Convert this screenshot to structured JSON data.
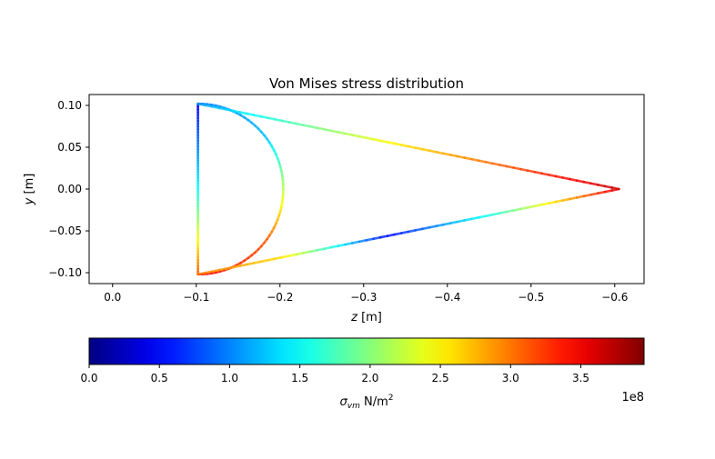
{
  "chart_data": {
    "type": "line",
    "title": "Von Mises stress distribution",
    "xlabel": {
      "var": "z",
      "unit": " [m]"
    },
    "ylabel": {
      "var": "y",
      "unit": " [m]"
    },
    "xlim": [
      0.028,
      -0.635
    ],
    "ylim": [
      -0.113,
      0.113
    ],
    "x_ticks": [
      0.0,
      -0.1,
      -0.2,
      -0.3,
      -0.4,
      -0.5,
      -0.6
    ],
    "x_tick_labels": [
      "0.0",
      "−0.1",
      "−0.2",
      "−0.3",
      "−0.4",
      "−0.5",
      "−0.6"
    ],
    "y_ticks": [
      0.1,
      0.05,
      0.0,
      -0.05,
      -0.1
    ],
    "y_tick_labels": [
      "0.10",
      "0.05",
      "0.00",
      "−0.05",
      "−0.10"
    ],
    "grid": false,
    "colormap": "jet",
    "segments": [
      {
        "name": "semicircle",
        "center": [
          -0.102,
          0.0
        ],
        "radius": 0.102,
        "stress_stops": [
          {
            "t": 0.0,
            "stress": 95000000.0
          },
          {
            "t": 0.3,
            "stress": 125000000.0
          },
          {
            "t": 0.5,
            "stress": 220000000.0
          },
          {
            "t": 0.7,
            "stress": 310000000.0
          },
          {
            "t": 1.0,
            "stress": 350000000.0
          }
        ]
      },
      {
        "name": "web",
        "points": [
          [
            -0.102,
            0.102
          ],
          [
            -0.102,
            -0.102
          ]
        ],
        "stress_stops": [
          {
            "t": 0.0,
            "stress": 45000000.0
          },
          {
            "t": 0.5,
            "stress": 150000000.0
          },
          {
            "t": 1.0,
            "stress": 310000000.0
          }
        ]
      },
      {
        "name": "upper-skin",
        "points": [
          [
            -0.102,
            0.102
          ],
          [
            -0.605,
            0.0
          ]
        ],
        "stress_stops": [
          {
            "t": 0.0,
            "stress": 110000000.0
          },
          {
            "t": 0.5,
            "stress": 260000000.0
          },
          {
            "t": 1.0,
            "stress": 370000000.0
          }
        ]
      },
      {
        "name": "lower-skin",
        "points": [
          [
            -0.102,
            -0.102
          ],
          [
            -0.605,
            0.0
          ]
        ],
        "stress_stops": [
          {
            "t": 0.0,
            "stress": 300000000.0
          },
          {
            "t": 0.2,
            "stress": 260000000.0
          },
          {
            "t": 0.45,
            "stress": 50000000.0
          },
          {
            "t": 0.7,
            "stress": 160000000.0
          },
          {
            "t": 0.85,
            "stress": 260000000.0
          },
          {
            "t": 1.0,
            "stress": 360000000.0
          }
        ]
      }
    ],
    "colorbar": {
      "min": 0.0,
      "max": 395000000.0,
      "ticks": [
        0.0,
        0.5,
        1.0,
        1.5,
        2.0,
        2.5,
        3.0,
        3.5
      ],
      "tick_labels": [
        "0.0",
        "0.5",
        "1.0",
        "1.5",
        "2.0",
        "2.5",
        "3.0",
        "3.5"
      ],
      "multiplier": "1e8",
      "label": {
        "var": "σ",
        "sub": "vm",
        "unit": " N/m",
        "sup": "2"
      }
    }
  }
}
